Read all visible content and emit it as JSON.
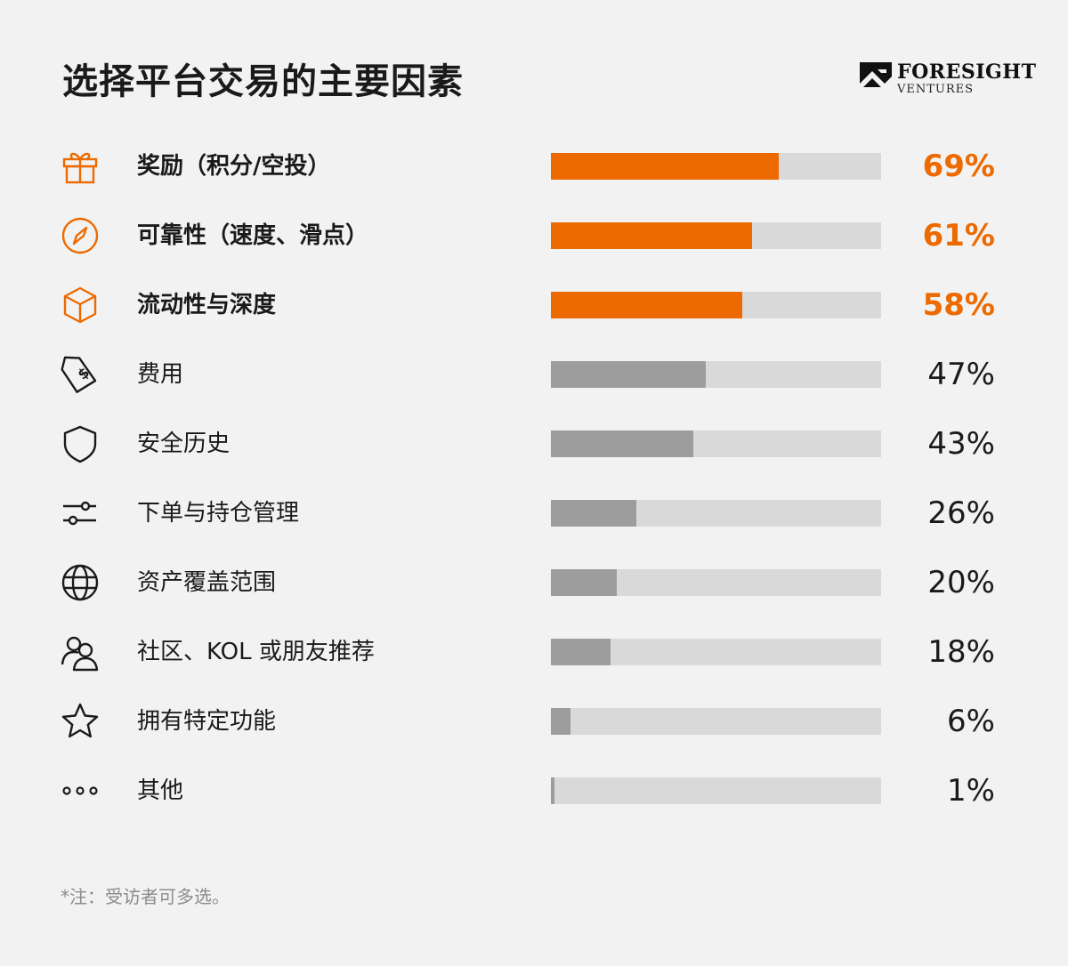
{
  "title": "选择平台交易的主要因素",
  "logo": {
    "name": "FORESIGHT",
    "sub": "VENTURES"
  },
  "note": "*注：受访者可多选。",
  "colors": {
    "accent": "#ec6a00",
    "bar": "#9d9d9d",
    "track": "#d9d9d9",
    "background": "#f2f2f2"
  },
  "chart_data": {
    "type": "bar",
    "orientation": "horizontal",
    "title": "选择平台交易的主要因素",
    "ylim": [
      0,
      100
    ],
    "unit": "%",
    "categories": [
      "奖励（积分/空投）",
      "可靠性（速度、滑点）",
      "流动性与深度",
      "费用",
      "安全历史",
      "下单与持仓管理",
      "资产覆盖范围",
      "社区、KOL 或朋友推荐",
      "拥有特定功能",
      "其他"
    ],
    "values": [
      69,
      61,
      58,
      47,
      43,
      26,
      20,
      18,
      6,
      1
    ],
    "value_labels": [
      "69%",
      "61%",
      "58%",
      "47%",
      "43%",
      "26%",
      "20%",
      "18%",
      "6%",
      "1%"
    ],
    "highlighted": [
      true,
      true,
      true,
      false,
      false,
      false,
      false,
      false,
      false,
      false
    ],
    "icons": [
      "gift-icon",
      "compass-icon",
      "cube-icon",
      "price-tag-icon",
      "shield-icon",
      "sliders-icon",
      "globe-icon",
      "users-icon",
      "star-icon",
      "more-dots-icon"
    ]
  }
}
